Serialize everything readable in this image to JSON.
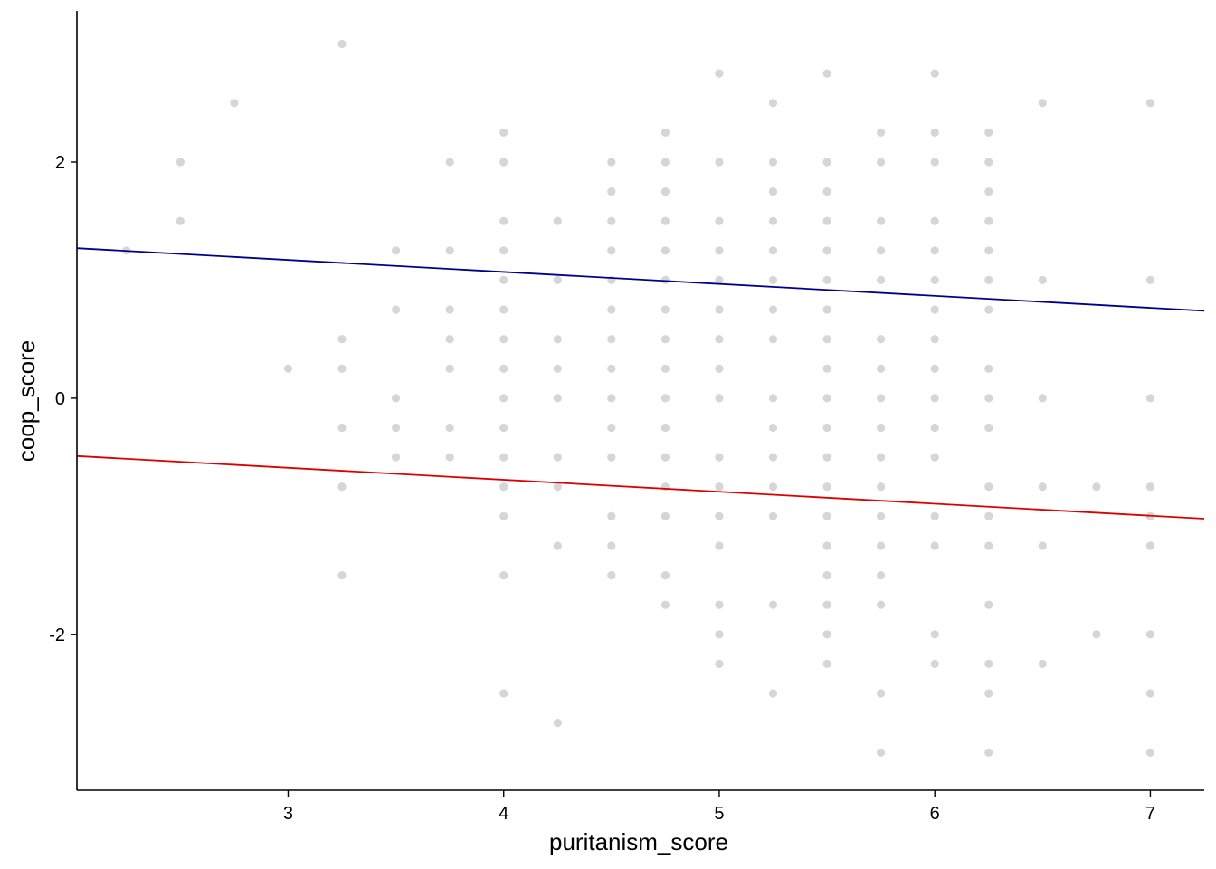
{
  "chart_data": {
    "type": "scatter",
    "title": "",
    "xlabel": "puritanism_score",
    "ylabel": "coop_score",
    "xlim": [
      2.02,
      7.25
    ],
    "ylim": [
      -3.32,
      3.28
    ],
    "x_ticks": [
      3,
      4,
      5,
      6,
      7
    ],
    "y_ticks": [
      -2,
      0,
      2
    ],
    "x_tick_labels": [
      "3",
      "4",
      "5",
      "6",
      "7"
    ],
    "y_tick_labels": [
      "-2",
      "0",
      "2"
    ],
    "grid": false,
    "point_color": "#d6d6d6",
    "series": [
      {
        "points": [
          [
            2.25,
            1.25
          ],
          [
            2.5,
            2.0
          ],
          [
            2.5,
            1.5
          ],
          [
            2.75,
            2.5
          ],
          [
            3.0,
            0.25
          ],
          [
            3.25,
            3.0
          ],
          [
            3.25,
            0.5
          ],
          [
            3.25,
            0.25
          ],
          [
            3.25,
            -0.25
          ],
          [
            3.25,
            -0.75
          ],
          [
            3.25,
            -1.5
          ],
          [
            3.5,
            1.25
          ],
          [
            3.5,
            0.75
          ],
          [
            3.5,
            0.0
          ],
          [
            3.5,
            -0.25
          ],
          [
            3.5,
            -0.5
          ],
          [
            3.75,
            2.0
          ],
          [
            3.75,
            1.25
          ],
          [
            3.75,
            0.75
          ],
          [
            3.75,
            0.5
          ],
          [
            3.75,
            0.25
          ],
          [
            3.75,
            -0.25
          ],
          [
            3.75,
            -0.5
          ],
          [
            4.0,
            2.25
          ],
          [
            4.0,
            2.0
          ],
          [
            4.0,
            1.5
          ],
          [
            4.0,
            1.25
          ],
          [
            4.0,
            1.0
          ],
          [
            4.0,
            0.75
          ],
          [
            4.0,
            0.5
          ],
          [
            4.0,
            0.25
          ],
          [
            4.0,
            0.0
          ],
          [
            4.0,
            -0.25
          ],
          [
            4.0,
            -0.5
          ],
          [
            4.0,
            -0.75
          ],
          [
            4.0,
            -1.0
          ],
          [
            4.0,
            -1.5
          ],
          [
            4.0,
            -2.5
          ],
          [
            4.25,
            1.5
          ],
          [
            4.25,
            1.0
          ],
          [
            4.25,
            0.5
          ],
          [
            4.25,
            0.25
          ],
          [
            4.25,
            0.0
          ],
          [
            4.25,
            -0.5
          ],
          [
            4.25,
            -0.75
          ],
          [
            4.25,
            -1.25
          ],
          [
            4.25,
            -2.75
          ],
          [
            4.5,
            2.0
          ],
          [
            4.5,
            1.75
          ],
          [
            4.5,
            1.5
          ],
          [
            4.5,
            1.25
          ],
          [
            4.5,
            1.0
          ],
          [
            4.5,
            0.75
          ],
          [
            4.5,
            0.5
          ],
          [
            4.5,
            0.25
          ],
          [
            4.5,
            0.0
          ],
          [
            4.5,
            -0.25
          ],
          [
            4.5,
            -0.5
          ],
          [
            4.5,
            -1.0
          ],
          [
            4.5,
            -1.25
          ],
          [
            4.5,
            -1.5
          ],
          [
            4.75,
            2.25
          ],
          [
            4.75,
            2.0
          ],
          [
            4.75,
            1.75
          ],
          [
            4.75,
            1.5
          ],
          [
            4.75,
            1.25
          ],
          [
            4.75,
            1.0
          ],
          [
            4.75,
            0.75
          ],
          [
            4.75,
            0.5
          ],
          [
            4.75,
            0.25
          ],
          [
            4.75,
            0.0
          ],
          [
            4.75,
            -0.25
          ],
          [
            4.75,
            -0.5
          ],
          [
            4.75,
            -0.75
          ],
          [
            4.75,
            -1.0
          ],
          [
            4.75,
            -1.5
          ],
          [
            4.75,
            -1.75
          ],
          [
            5.0,
            2.75
          ],
          [
            5.0,
            2.0
          ],
          [
            5.0,
            1.5
          ],
          [
            5.0,
            1.25
          ],
          [
            5.0,
            1.0
          ],
          [
            5.0,
            0.75
          ],
          [
            5.0,
            0.5
          ],
          [
            5.0,
            0.25
          ],
          [
            5.0,
            0.0
          ],
          [
            5.0,
            -0.5
          ],
          [
            5.0,
            -0.75
          ],
          [
            5.0,
            -1.0
          ],
          [
            5.0,
            -1.25
          ],
          [
            5.0,
            -1.75
          ],
          [
            5.0,
            -2.0
          ],
          [
            5.0,
            -2.25
          ],
          [
            5.25,
            2.5
          ],
          [
            5.25,
            2.0
          ],
          [
            5.25,
            1.75
          ],
          [
            5.25,
            1.5
          ],
          [
            5.25,
            1.25
          ],
          [
            5.25,
            1.0
          ],
          [
            5.25,
            0.75
          ],
          [
            5.25,
            0.5
          ],
          [
            5.25,
            0.0
          ],
          [
            5.25,
            -0.25
          ],
          [
            5.25,
            -0.5
          ],
          [
            5.25,
            -0.75
          ],
          [
            5.25,
            -1.0
          ],
          [
            5.25,
            -1.75
          ],
          [
            5.25,
            -2.5
          ],
          [
            5.5,
            2.75
          ],
          [
            5.5,
            2.0
          ],
          [
            5.5,
            1.75
          ],
          [
            5.5,
            1.5
          ],
          [
            5.5,
            1.25
          ],
          [
            5.5,
            1.0
          ],
          [
            5.5,
            0.75
          ],
          [
            5.5,
            0.5
          ],
          [
            5.5,
            0.25
          ],
          [
            5.5,
            0.0
          ],
          [
            5.5,
            -0.25
          ],
          [
            5.5,
            -0.5
          ],
          [
            5.5,
            -0.75
          ],
          [
            5.5,
            -1.0
          ],
          [
            5.5,
            -1.25
          ],
          [
            5.5,
            -1.5
          ],
          [
            5.5,
            -1.75
          ],
          [
            5.5,
            -2.0
          ],
          [
            5.5,
            -2.25
          ],
          [
            5.75,
            2.25
          ],
          [
            5.75,
            2.0
          ],
          [
            5.75,
            1.5
          ],
          [
            5.75,
            1.25
          ],
          [
            5.75,
            1.0
          ],
          [
            5.75,
            0.5
          ],
          [
            5.75,
            0.25
          ],
          [
            5.75,
            0.0
          ],
          [
            5.75,
            -0.25
          ],
          [
            5.75,
            -0.5
          ],
          [
            5.75,
            -0.75
          ],
          [
            5.75,
            -1.0
          ],
          [
            5.75,
            -1.25
          ],
          [
            5.75,
            -1.5
          ],
          [
            5.75,
            -1.75
          ],
          [
            5.75,
            -2.5
          ],
          [
            5.75,
            -3.0
          ],
          [
            6.0,
            2.75
          ],
          [
            6.0,
            2.25
          ],
          [
            6.0,
            2.0
          ],
          [
            6.0,
            1.5
          ],
          [
            6.0,
            1.25
          ],
          [
            6.0,
            1.0
          ],
          [
            6.0,
            0.75
          ],
          [
            6.0,
            0.5
          ],
          [
            6.0,
            0.25
          ],
          [
            6.0,
            0.0
          ],
          [
            6.0,
            -0.25
          ],
          [
            6.0,
            -0.5
          ],
          [
            6.0,
            -1.0
          ],
          [
            6.0,
            -1.25
          ],
          [
            6.0,
            -2.0
          ],
          [
            6.0,
            -2.25
          ],
          [
            6.25,
            2.25
          ],
          [
            6.25,
            2.0
          ],
          [
            6.25,
            1.75
          ],
          [
            6.25,
            1.5
          ],
          [
            6.25,
            1.25
          ],
          [
            6.25,
            1.0
          ],
          [
            6.25,
            0.75
          ],
          [
            6.25,
            0.25
          ],
          [
            6.25,
            0.0
          ],
          [
            6.25,
            -0.25
          ],
          [
            6.25,
            -0.75
          ],
          [
            6.25,
            -1.0
          ],
          [
            6.25,
            -1.25
          ],
          [
            6.25,
            -1.75
          ],
          [
            6.25,
            -2.25
          ],
          [
            6.25,
            -2.5
          ],
          [
            6.25,
            -3.0
          ],
          [
            6.5,
            2.5
          ],
          [
            6.5,
            1.0
          ],
          [
            6.5,
            0.0
          ],
          [
            6.5,
            -0.75
          ],
          [
            6.5,
            -1.25
          ],
          [
            6.5,
            -2.25
          ],
          [
            6.75,
            -0.75
          ],
          [
            6.75,
            -2.0
          ],
          [
            7.0,
            2.5
          ],
          [
            7.0,
            1.0
          ],
          [
            7.0,
            0.0
          ],
          [
            7.0,
            -0.75
          ],
          [
            7.0,
            -1.0
          ],
          [
            7.0,
            -1.25
          ],
          [
            7.0,
            -2.0
          ],
          [
            7.0,
            -2.5
          ],
          [
            7.0,
            -3.0
          ]
        ]
      }
    ],
    "lines": [
      {
        "color": "#00008b",
        "x": [
          2.02,
          7.25
        ],
        "y": [
          1.27,
          0.74
        ]
      },
      {
        "color": "#dd0000",
        "x": [
          2.02,
          7.25
        ],
        "y": [
          -0.49,
          -1.02
        ]
      }
    ]
  }
}
